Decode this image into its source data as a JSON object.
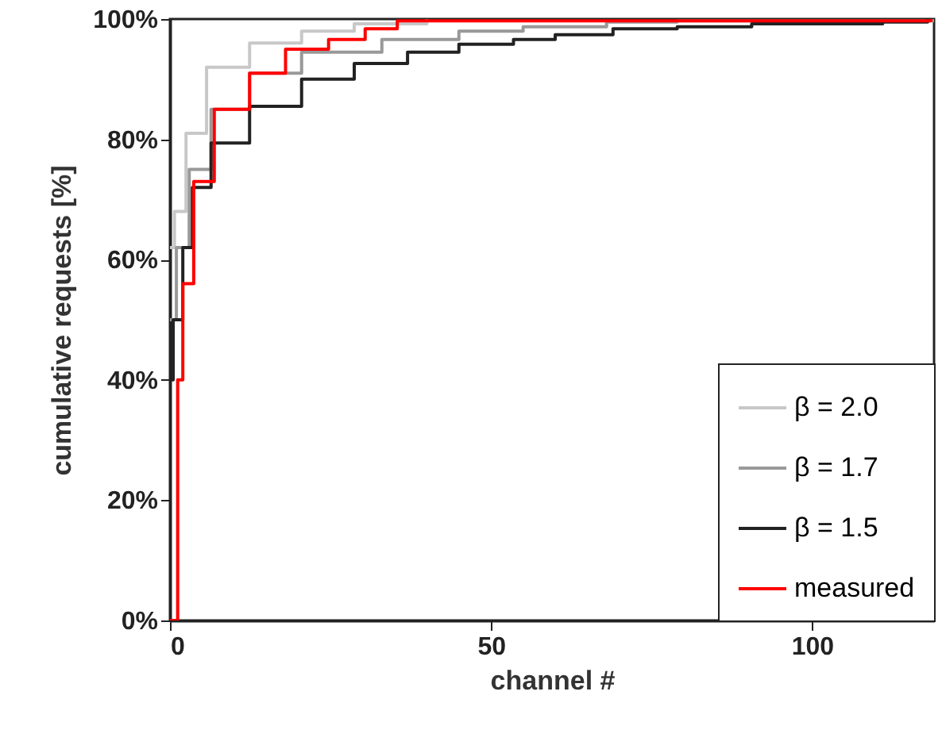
{
  "chart_data": {
    "type": "step",
    "xlabel": "channel #",
    "ylabel": "cumulative requests [%]",
    "xlim": [
      0,
      119
    ],
    "xticks": [
      0,
      50,
      100
    ],
    "ylim": [
      0,
      100
    ],
    "yticks": [
      {
        "value": 0,
        "label": "0%"
      },
      {
        "value": 20,
        "label": "20%"
      },
      {
        "value": 40,
        "label": "40%"
      },
      {
        "value": 60,
        "label": "60%"
      },
      {
        "value": 80,
        "label": "80%"
      },
      {
        "value": 100,
        "label": "100%"
      }
    ],
    "grid": false,
    "legend": "bottom right",
    "series": [
      {
        "name": "β = 2.0",
        "color": "#c8c8c8",
        "x": [
          0,
          0.7,
          2.5,
          5.7,
          12.4,
          20.5,
          28.7,
          40
        ],
        "values": [
          62,
          68,
          81,
          92,
          96,
          98,
          99.2,
          100
        ]
      },
      {
        "name": "β = 1.7",
        "color": "#999999",
        "x": [
          0,
          1,
          3,
          6.4,
          12.4,
          20.5,
          33,
          45,
          55,
          68,
          79,
          119
        ],
        "values": [
          50,
          62,
          75,
          85,
          91,
          94.5,
          96.6,
          98,
          98.7,
          99.5,
          99.7,
          100
        ]
      },
      {
        "name": "β = 1.5",
        "color": "#222222",
        "x": [
          0,
          0.5,
          2,
          3.5,
          6.4,
          12.4,
          20.5,
          28.7,
          37,
          45,
          53.5,
          60,
          69,
          79,
          90.6,
          111,
          118
        ],
        "values": [
          40,
          50,
          62,
          72,
          79.4,
          85.5,
          90,
          92.6,
          94.5,
          95.8,
          96.6,
          97.4,
          98.4,
          98.7,
          99.2,
          99.5,
          100
        ]
      },
      {
        "name": "measured",
        "color": "#ff0000",
        "x": [
          0,
          1.2,
          2,
          3.7,
          5.4,
          6.9,
          12.4,
          18,
          24.7,
          30.4,
          35.4,
          118.5
        ],
        "values": [
          0,
          40,
          56,
          73,
          73,
          85,
          91,
          95,
          96.6,
          98.4,
          99.7,
          100
        ]
      }
    ]
  }
}
